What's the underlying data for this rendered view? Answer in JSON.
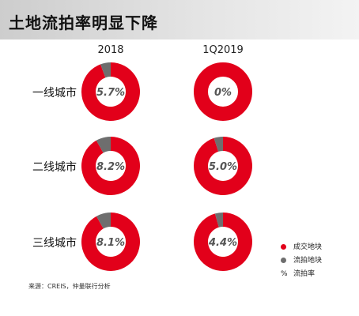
{
  "title": "土地流拍率明显下降",
  "chart_data": {
    "type": "pie",
    "columns": [
      "2018",
      "1Q2019"
    ],
    "rows": [
      "一线城市",
      "二线城市",
      "三线城市"
    ],
    "values": [
      [
        5.7,
        0.0
      ],
      [
        8.2,
        5.0
      ],
      [
        8.1,
        4.4
      ]
    ],
    "labels": [
      [
        "5.7%",
        "0%"
      ],
      [
        "8.2%",
        "5.0%"
      ],
      [
        "8.1%",
        "4.4%"
      ]
    ],
    "series": [
      {
        "name": "成交地块",
        "color": "#e2001a"
      },
      {
        "name": "流拍地块",
        "color": "#6e6e6e"
      }
    ],
    "legend_rate": {
      "symbol": "%",
      "name": "流拍率"
    }
  },
  "source": "来源：CREIS，仲量联行分析"
}
